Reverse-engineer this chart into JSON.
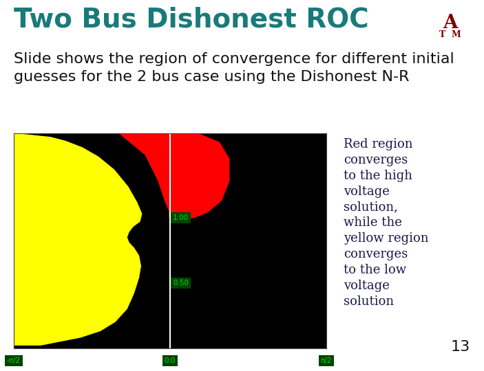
{
  "title": "Two Bus Dishonest ROC",
  "title_color": "#1a7a7a",
  "title_fontsize": 28,
  "separator_color": "#00008B",
  "body_text": "Slide shows the region of convergence for different initial\nguesses for the 2 bus case using the Dishonest N-R",
  "body_fontsize": 16,
  "annotation_box_color": "#90c878",
  "annotation_text": "Red region\nconverges\nto the high\nvoltage\nsolution,\nwhile the\nyellow region\nconverges\nto the low\nvoltage\nsolution",
  "annotation_fontsize": 13,
  "annotation_text_color": "#1a1a4a",
  "page_number": "13",
  "page_num_fontsize": 16,
  "bg_color": "#ffffff",
  "plot_bg": "#000000",
  "plot_title_bar_color": "#4444bb",
  "tick_label_color": "#00dd00",
  "x_ticks": [
    "-π/2",
    "0.0",
    "π/2"
  ],
  "y_ticks": [
    "1.00",
    "0.50"
  ]
}
